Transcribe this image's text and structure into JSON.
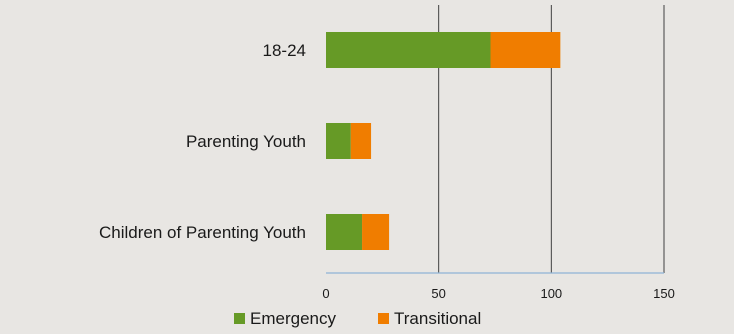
{
  "chart_data": {
    "type": "bar",
    "orientation": "horizontal",
    "stacked": true,
    "categories": [
      "18-24",
      "Parenting Youth",
      "Children of Parenting Youth"
    ],
    "series": [
      {
        "name": "Emergency",
        "values": [
          73,
          11,
          16
        ],
        "color": "#669a26"
      },
      {
        "name": "Transitional",
        "values": [
          31,
          9,
          12
        ],
        "color": "#f07d00"
      }
    ],
    "xlim": [
      0,
      150
    ],
    "xticks": [
      0,
      50,
      100,
      150
    ],
    "xtick_labels": [
      "0",
      "50",
      "100",
      "150"
    ],
    "grid": "vertical",
    "legend": "bottom-center"
  }
}
